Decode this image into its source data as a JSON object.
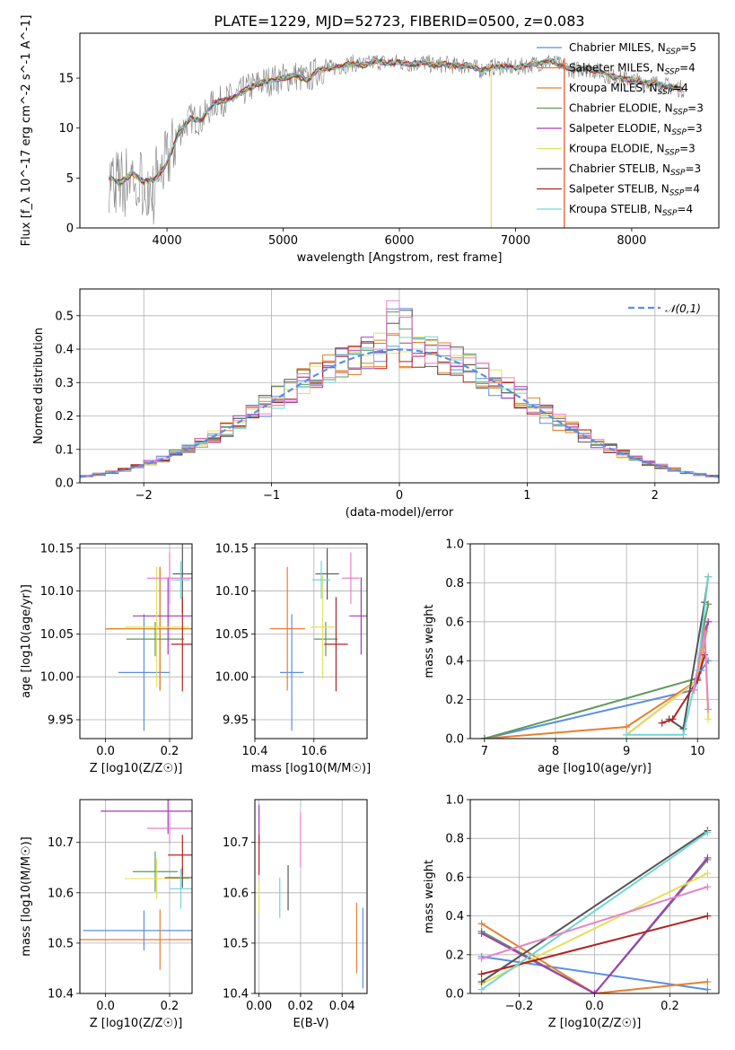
{
  "title": "PLATE=1229, MJD=52723, FIBERID=0500, z=0.083",
  "series_styles": [
    {
      "name": "Chabrier MILES",
      "nssp": "5",
      "color": "#5B8EE6"
    },
    {
      "name": "Salpeter MILES",
      "nssp": "4",
      "color": "#E87E2F"
    },
    {
      "name": "Kroupa MILES",
      "nssp": "4",
      "color": "#D9832A"
    },
    {
      "name": "Chabrier ELODIE",
      "nssp": "3",
      "color": "#5E9A5E"
    },
    {
      "name": "Salpeter ELODIE",
      "nssp": "3",
      "color": "#A23CB8"
    },
    {
      "name": "Kroupa ELODIE",
      "nssp": "3",
      "color": "#E3E05A"
    },
    {
      "name": "Chabrier STELIB",
      "nssp": "3",
      "color": "#555555"
    },
    {
      "name": "Salpeter STELIB",
      "nssp": "4",
      "color": "#B22222"
    },
    {
      "name": "Kroupa STELIB",
      "nssp": "4",
      "color": "#6FD6D8"
    }
  ],
  "chart_data": [
    {
      "id": "spectrum",
      "type": "line",
      "xlabel": "wavelength [Angstrom, rest frame]",
      "ylabel": "Flux [f_λ 10^-17 erg cm^-2 s^-1 A^-1]",
      "xlim": [
        3250,
        8750
      ],
      "ylim": [
        0,
        19.5
      ],
      "xticks": [
        4000,
        5000,
        6000,
        7000,
        8000
      ],
      "yticks": [
        0,
        5,
        10,
        15
      ],
      "legend_position": "right",
      "x": [
        3500,
        3600,
        3700,
        3800,
        3900,
        4000,
        4100,
        4200,
        4300,
        4400,
        4500,
        4600,
        4700,
        4800,
        4900,
        5000,
        5100,
        5200,
        5300,
        5400,
        5500,
        5600,
        5700,
        5800,
        5900,
        6000,
        6100,
        6200,
        6300,
        6400,
        6500,
        6600,
        6700,
        6800,
        6900,
        7000,
        7100,
        7200,
        7300,
        7400,
        7500,
        7600,
        7700,
        7800,
        7900,
        8000,
        8100,
        8200,
        8300,
        8400,
        8500
      ],
      "y": [
        5.0,
        4.5,
        5.5,
        4.6,
        4.9,
        6.5,
        9.5,
        11.0,
        10.8,
        12.5,
        12.8,
        13.2,
        14.0,
        14.5,
        14.8,
        15.0,
        15.3,
        14.8,
        15.8,
        16.0,
        16.2,
        16.5,
        16.3,
        16.7,
        16.5,
        16.6,
        16.4,
        16.6,
        16.3,
        16.4,
        16.2,
        16.3,
        15.8,
        16.1,
        16.2,
        16.0,
        16.3,
        16.5,
        16.7,
        16.2,
        15.8,
        16.0,
        15.7,
        15.2,
        15.0,
        14.8,
        14.6,
        14.5,
        14.2,
        14.0,
        13.8
      ],
      "series": [
        {
          "name": "Chabrier MILES",
          "nssp": "5"
        },
        {
          "name": "Salpeter MILES",
          "nssp": "4"
        },
        {
          "name": "Kroupa MILES",
          "nssp": "4"
        },
        {
          "name": "Chabrier ELODIE",
          "nssp": "3"
        },
        {
          "name": "Salpeter ELODIE",
          "nssp": "3"
        },
        {
          "name": "Kroupa ELODIE",
          "nssp": "3"
        },
        {
          "name": "Chabrier STELIB",
          "nssp": "3"
        },
        {
          "name": "Salpeter STELIB",
          "nssp": "4"
        },
        {
          "name": "Kroupa STELIB",
          "nssp": "4"
        }
      ]
    },
    {
      "id": "residuals",
      "type": "line",
      "xlabel": "(data-model)/error",
      "ylabel": "Normed distribution",
      "xlim": [
        -2.5,
        2.5
      ],
      "ylim": [
        0,
        0.58
      ],
      "xticks": [
        -2,
        -1,
        0,
        1,
        2
      ],
      "yticks": [
        0.0,
        0.1,
        0.2,
        0.3,
        0.4,
        0.5
      ],
      "grid": true,
      "legend": "𝒩(0,1)",
      "legend_position": "top-right",
      "bin_width": 0.1,
      "note_distribution": "step histograms for 9 fits scattered around the N(0,1) curve"
    },
    {
      "id": "age_vs_Z",
      "type": "scatter",
      "xlabel": "Z [log10(Z/Z☉)]",
      "ylabel": "age  [log10(age/yr)]",
      "xlim": [
        -0.08,
        0.27
      ],
      "ylim": [
        9.928,
        10.155
      ],
      "xticks": [
        0.0,
        0.2
      ],
      "yticks": [
        9.95,
        10.0,
        10.05,
        10.1,
        10.15
      ],
      "grid": true,
      "points": [
        {
          "series": "Chabrier MILES",
          "x": 0.12,
          "y": 10.005,
          "xerr": 0.08,
          "yerr": 0.068
        },
        {
          "series": "Salpeter MILES",
          "x": 0.17,
          "y": 10.056,
          "xerr": 0.17,
          "yerr": 0.072
        },
        {
          "series": "Kroupa MILES",
          "x": 0.17,
          "y": 10.056,
          "xerr": 0.17,
          "yerr": 0.072
        },
        {
          "series": "Chabrier ELODIE",
          "x": 0.155,
          "y": 10.044,
          "xerr": 0.09,
          "yerr": 0.02
        },
        {
          "series": "Salpeter ELODIE",
          "x": 0.195,
          "y": 10.071,
          "xerr": 0.11,
          "yerr": 0.045
        },
        {
          "series": "Kroupa ELODIE",
          "x": 0.16,
          "y": 10.058,
          "xerr": 0.1,
          "yerr": 0.07
        },
        {
          "series": "Chabrier STELIB",
          "x": 0.24,
          "y": 10.12,
          "xerr": 0.03,
          "yerr": 0.045
        },
        {
          "series": "Salpeter STELIB",
          "x": 0.24,
          "y": 10.038,
          "xerr": 0.035,
          "yerr": 0.055
        },
        {
          "series": "Kroupa STELIB",
          "x": 0.235,
          "y": 10.113,
          "xerr": 0.03,
          "yerr": 0.022
        },
        {
          "series": "Salpeter ELODIE pink",
          "x": 0.2,
          "y": 10.115,
          "xerr": 0.07,
          "yerr": 0.03
        }
      ]
    },
    {
      "id": "age_vs_mass",
      "type": "scatter",
      "xlabel": "mass [log10(M/M☉)]",
      "ylabel": "",
      "xlim": [
        10.4,
        10.78
      ],
      "ylim": [
        9.928,
        10.155
      ],
      "xticks": [
        10.4,
        10.6
      ],
      "yticks": [
        9.95,
        10.0,
        10.05,
        10.1,
        10.15
      ],
      "grid": true,
      "points": [
        {
          "series": "Chabrier MILES",
          "x": 10.525,
          "y": 10.005,
          "xerr": 0.04,
          "yerr": 0.068
        },
        {
          "series": "Salpeter MILES",
          "x": 10.51,
          "y": 10.056,
          "xerr": 0.06,
          "yerr": 0.072
        },
        {
          "series": "Chabrier ELODIE",
          "x": 10.64,
          "y": 10.044,
          "xerr": 0.04,
          "yerr": 0.02
        },
        {
          "series": "Salpeter ELODIE",
          "x": 10.76,
          "y": 10.071,
          "xerr": 0.04,
          "yerr": 0.045
        },
        {
          "series": "Kroupa ELODIE",
          "x": 10.63,
          "y": 10.058,
          "xerr": 0.04,
          "yerr": 0.06
        },
        {
          "series": "Chabrier STELIB",
          "x": 10.645,
          "y": 10.12,
          "xerr": 0.04,
          "yerr": 0.03
        },
        {
          "series": "Salpeter STELIB",
          "x": 10.675,
          "y": 10.038,
          "xerr": 0.04,
          "yerr": 0.055
        },
        {
          "series": "Kroupa STELIB",
          "x": 10.625,
          "y": 10.113,
          "xerr": 0.03,
          "yerr": 0.022
        },
        {
          "series": "pink",
          "x": 10.725,
          "y": 10.115,
          "xerr": 0.03,
          "yerr": 0.03
        }
      ]
    },
    {
      "id": "weight_vs_age",
      "type": "line",
      "xlabel": "age  [log10(age/yr)]",
      "ylabel": "mass weight",
      "xlim": [
        6.8,
        10.3
      ],
      "ylim": [
        0,
        1.0
      ],
      "xticks": [
        7,
        8,
        9,
        10
      ],
      "yticks": [
        0.0,
        0.2,
        0.4,
        0.6,
        0.8,
        1.0
      ],
      "grid": true,
      "series": [
        {
          "name": "Chabrier MILES",
          "x": [
            7.0,
            9.95,
            10.05,
            10.15
          ],
          "y": [
            0.0,
            0.25,
            0.35,
            0.4
          ]
        },
        {
          "name": "Salpeter MILES",
          "x": [
            7.0,
            9.0,
            10.0,
            10.15
          ],
          "y": [
            0.0,
            0.06,
            0.3,
            0.6
          ]
        },
        {
          "name": "Chabrier ELODIE",
          "x": [
            7.0,
            10.0,
            10.1,
            10.15
          ],
          "y": [
            0.0,
            0.31,
            0.6,
            0.69
          ]
        },
        {
          "name": "Salpeter ELODIE",
          "x": [
            9.0,
            10.0,
            10.1,
            10.15
          ],
          "y": [
            0.02,
            0.3,
            0.55,
            0.6
          ]
        },
        {
          "name": "Kroupa ELODIE",
          "x": [
            9.0,
            10.0,
            10.1,
            10.15
          ],
          "y": [
            0.02,
            0.3,
            0.55,
            0.1
          ]
        },
        {
          "name": "Chabrier STELIB",
          "x": [
            9.6,
            9.8,
            10.1,
            10.15
          ],
          "y": [
            0.1,
            0.05,
            0.7,
            0.83
          ]
        },
        {
          "name": "Salpeter STELIB",
          "x": [
            9.5,
            9.65,
            10.0,
            10.1
          ],
          "y": [
            0.08,
            0.1,
            0.3,
            0.43
          ]
        },
        {
          "name": "Kroupa STELIB",
          "x": [
            9.0,
            9.8,
            10.0,
            10.15
          ],
          "y": [
            0.02,
            0.02,
            0.35,
            0.83
          ]
        },
        {
          "name": "pink",
          "x": [
            9.95,
            10.1,
            10.15
          ],
          "y": [
            0.25,
            0.55,
            0.15
          ]
        }
      ]
    },
    {
      "id": "mass_vs_Z",
      "type": "scatter",
      "xlabel": "Z [log10(Z/Z☉)]",
      "ylabel": "mass [log10(M/M☉)]",
      "xlim": [
        -0.08,
        0.27
      ],
      "ylim": [
        10.4,
        10.785
      ],
      "xticks": [
        0.0,
        0.2
      ],
      "yticks": [
        10.4,
        10.5,
        10.6,
        10.7
      ],
      "grid": true,
      "points": [
        {
          "series": "Chabrier MILES",
          "x": 0.12,
          "y": 10.525,
          "xerr": 0.19,
          "yerr": 0.04
        },
        {
          "series": "Salpeter MILES",
          "x": 0.17,
          "y": 10.507,
          "xerr": 0.25,
          "yerr": 0.06
        },
        {
          "series": "Chabrier ELODIE",
          "x": 0.155,
          "y": 10.642,
          "xerr": 0.07,
          "yerr": 0.04
        },
        {
          "series": "Salpeter ELODIE",
          "x": 0.195,
          "y": 10.762,
          "xerr": 0.21,
          "yerr": 0.045
        },
        {
          "series": "Kroupa ELODIE",
          "x": 0.16,
          "y": 10.628,
          "xerr": 0.1,
          "yerr": 0.04
        },
        {
          "series": "Chabrier STELIB",
          "x": 0.24,
          "y": 10.63,
          "xerr": 0.055,
          "yerr": 0.02
        },
        {
          "series": "Salpeter STELIB",
          "x": 0.24,
          "y": 10.675,
          "xerr": 0.045,
          "yerr": 0.04
        },
        {
          "series": "Kroupa STELIB",
          "x": 0.235,
          "y": 10.608,
          "xerr": 0.035,
          "yerr": 0.04
        },
        {
          "series": "pink",
          "x": 0.2,
          "y": 10.728,
          "xerr": 0.07,
          "yerr": 0.03
        }
      ]
    },
    {
      "id": "mass_vs_ebv",
      "type": "scatter",
      "xlabel": "E(B-V)",
      "ylabel": "",
      "xlim": [
        -0.002,
        0.052
      ],
      "ylim": [
        10.4,
        10.785
      ],
      "xticks": [
        0.0,
        0.02,
        0.04
      ],
      "yticks": [
        10.4,
        10.5,
        10.6,
        10.7
      ],
      "grid": true,
      "points": [
        {
          "series": "Chabrier MILES",
          "x": 0.05,
          "y": 10.49,
          "xerr": 0.0,
          "yerr": 0.08
        },
        {
          "series": "Salpeter MILES",
          "x": 0.047,
          "y": 10.51,
          "xerr": 0.0,
          "yerr": 0.07
        },
        {
          "series": "Salpeter ELODIE",
          "x": 0.0,
          "y": 10.735,
          "xerr": 0.0,
          "yerr": 0.04
        },
        {
          "series": "Kroupa ELODIE",
          "x": 0.0,
          "y": 10.59,
          "xerr": 0.0,
          "yerr": 0.03
        },
        {
          "series": "Chabrier STELIB",
          "x": 0.014,
          "y": 10.61,
          "xerr": 0.0,
          "yerr": 0.045
        },
        {
          "series": "Salpeter STELIB",
          "x": 0.0,
          "y": 10.675,
          "xerr": 0.0,
          "yerr": 0.04
        },
        {
          "series": "Kroupa STELIB",
          "x": 0.01,
          "y": 10.59,
          "xerr": 0.0,
          "yerr": 0.04
        },
        {
          "series": "pink",
          "x": 0.02,
          "y": 10.705,
          "xerr": 0.0,
          "yerr": 0.055
        }
      ]
    },
    {
      "id": "weight_vs_Z",
      "type": "line",
      "xlabel": "Z [log10(Z/Z☉)]",
      "ylabel": "mass weight",
      "xlim": [
        -0.33,
        0.33
      ],
      "ylim": [
        0,
        1.0
      ],
      "xticks": [
        -0.2,
        0.0,
        0.2
      ],
      "yticks": [
        0.0,
        0.2,
        0.4,
        0.6,
        0.8,
        1.0
      ],
      "grid": true,
      "series": [
        {
          "name": "Chabrier MILES",
          "x": [
            -0.3,
            0.3
          ],
          "y": [
            0.19,
            0.02
          ]
        },
        {
          "name": "Salpeter MILES",
          "x": [
            -0.3,
            0.0,
            0.3
          ],
          "y": [
            0.36,
            0.0,
            0.06
          ]
        },
        {
          "name": "Chabrier ELODIE",
          "x": [
            -0.3,
            0.0,
            0.3
          ],
          "y": [
            0.32,
            0.0,
            0.69
          ]
        },
        {
          "name": "Salpeter ELODIE",
          "x": [
            -0.3,
            0.0,
            0.3
          ],
          "y": [
            0.31,
            0.0,
            0.7
          ]
        },
        {
          "name": "Kroupa ELODIE",
          "x": [
            -0.3,
            0.3
          ],
          "y": [
            0.05,
            0.62
          ]
        },
        {
          "name": "Chabrier STELIB",
          "x": [
            -0.3,
            0.3
          ],
          "y": [
            0.06,
            0.84
          ]
        },
        {
          "name": "Salpeter STELIB",
          "x": [
            -0.3,
            0.3
          ],
          "y": [
            0.1,
            0.4
          ]
        },
        {
          "name": "Kroupa STELIB",
          "x": [
            -0.3,
            0.3
          ],
          "y": [
            0.02,
            0.83
          ]
        },
        {
          "name": "pink",
          "x": [
            -0.3,
            0.3
          ],
          "y": [
            0.18,
            0.55
          ]
        }
      ]
    }
  ]
}
